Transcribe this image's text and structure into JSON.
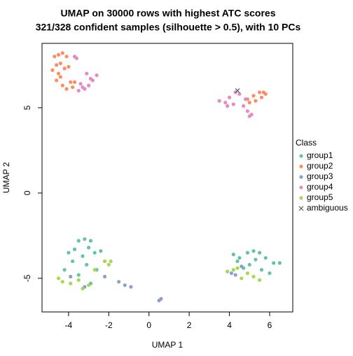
{
  "chart_data": {
    "type": "scatter",
    "title": "UMAP on 30000 rows with highest ATC scores",
    "subtitle": "321/328 confident samples (silhouette > 0.5), with 10 PCs",
    "x_label": "UMAP 1",
    "y_label": "UMAP 2",
    "xlim": [
      -5.32,
      7.15
    ],
    "ylim": [
      -6.97,
      8.77
    ],
    "xticks": [
      -4,
      -2,
      0,
      2,
      4,
      6
    ],
    "yticks": [
      -5,
      0,
      5
    ],
    "grid": false,
    "legend_title": "Class",
    "legend_position": "right",
    "series": [
      {
        "name": "group1",
        "color": "#66C2A5",
        "marker": "circle",
        "x": [
          -3.5,
          -3.2,
          -2.9,
          -3.0,
          -3.7,
          -4.0,
          -3.3,
          -2.7,
          -2.4,
          -2.2,
          -3.8,
          -4.2,
          -3.1,
          -2.6,
          -3.5,
          -2.9,
          4.2,
          4.5,
          4.9,
          5.2,
          5.5,
          5.8,
          6.2,
          6.5,
          5.0,
          4.7,
          5.6,
          4.4,
          6.0,
          5.3
        ],
        "y": [
          -2.8,
          -2.7,
          -2.8,
          -3.2,
          -3.3,
          -3.5,
          -3.7,
          -3.5,
          -3.4,
          -4.0,
          -4.0,
          -4.5,
          -4.2,
          -4.5,
          -4.8,
          -5.3,
          -3.6,
          -3.8,
          -3.5,
          -3.4,
          -3.5,
          -3.8,
          -4.1,
          -4.1,
          -4.2,
          -4.4,
          -4.5,
          -4.0,
          -4.7,
          -3.9
        ]
      },
      {
        "name": "group2",
        "color": "#FC8D62",
        "marker": "circle",
        "x": [
          -4.7,
          -4.5,
          -4.3,
          -4.1,
          -4.6,
          -4.4,
          -4.2,
          -4.8,
          -4.5,
          -4.0,
          -3.9,
          -4.3,
          -4.6,
          -3.8,
          -4.1,
          -4.4,
          -3.7,
          4.9,
          5.2,
          5.5,
          5.8,
          5.6,
          5.3,
          5.0,
          5.7
        ],
        "y": [
          8.0,
          8.1,
          8.2,
          8.0,
          7.5,
          7.6,
          7.3,
          7.2,
          7.0,
          7.4,
          6.5,
          6.3,
          6.6,
          6.2,
          6.1,
          6.8,
          6.5,
          5.5,
          5.7,
          5.9,
          5.8,
          5.6,
          5.4,
          5.3,
          5.9
        ]
      },
      {
        "name": "group3",
        "color": "#8DA0CB",
        "marker": "circle",
        "x": [
          -3.9,
          -3.2,
          -2.2,
          -1.5,
          -1.2,
          -0.9,
          0.5,
          0.6,
          3.9,
          4.1,
          4.6,
          4.3
        ],
        "y": [
          -4.9,
          -5.5,
          -4.9,
          -5.2,
          -5.4,
          -5.5,
          -6.3,
          -6.2,
          -4.6,
          -4.7,
          -4.3,
          -4.8
        ]
      },
      {
        "name": "group4",
        "color": "#E78AC3",
        "marker": "circle",
        "x": [
          -3.7,
          -3.5,
          -3.2,
          -3.0,
          -2.8,
          -2.6,
          -3.4,
          -3.1,
          -2.9,
          -3.3,
          -3.6,
          3.5,
          3.8,
          4.0,
          4.2,
          4.5,
          4.7,
          4.9,
          5.0,
          4.3,
          3.9,
          4.8,
          5.1
        ],
        "y": [
          8.0,
          6.0,
          6.1,
          6.3,
          6.6,
          6.9,
          6.4,
          7.0,
          6.7,
          6.2,
          7.9,
          5.4,
          5.3,
          5.6,
          5.2,
          5.8,
          5.1,
          4.8,
          4.5,
          5.9,
          5.1,
          5.5,
          4.6
        ]
      },
      {
        "name": "group5",
        "color": "#A6D854",
        "marker": "circle",
        "x": [
          -4.5,
          -4.3,
          -3.9,
          -3.5,
          -3.3,
          -3.0,
          -2.7,
          -2.2,
          -2.0,
          -1.9,
          3.9,
          4.2,
          4.6,
          4.9,
          5.2,
          5.5,
          4.4
        ],
        "y": [
          -5.0,
          -5.2,
          -5.3,
          -5.1,
          -5.6,
          -5.4,
          -4.5,
          -4.0,
          -4.2,
          -4.0,
          -4.6,
          -4.5,
          -5.0,
          -4.7,
          -4.9,
          -5.1,
          -4.4
        ]
      },
      {
        "name": "ambiguous",
        "color": "#555555",
        "marker": "x",
        "x": [
          4.4
        ],
        "y": [
          6.0
        ]
      }
    ]
  }
}
